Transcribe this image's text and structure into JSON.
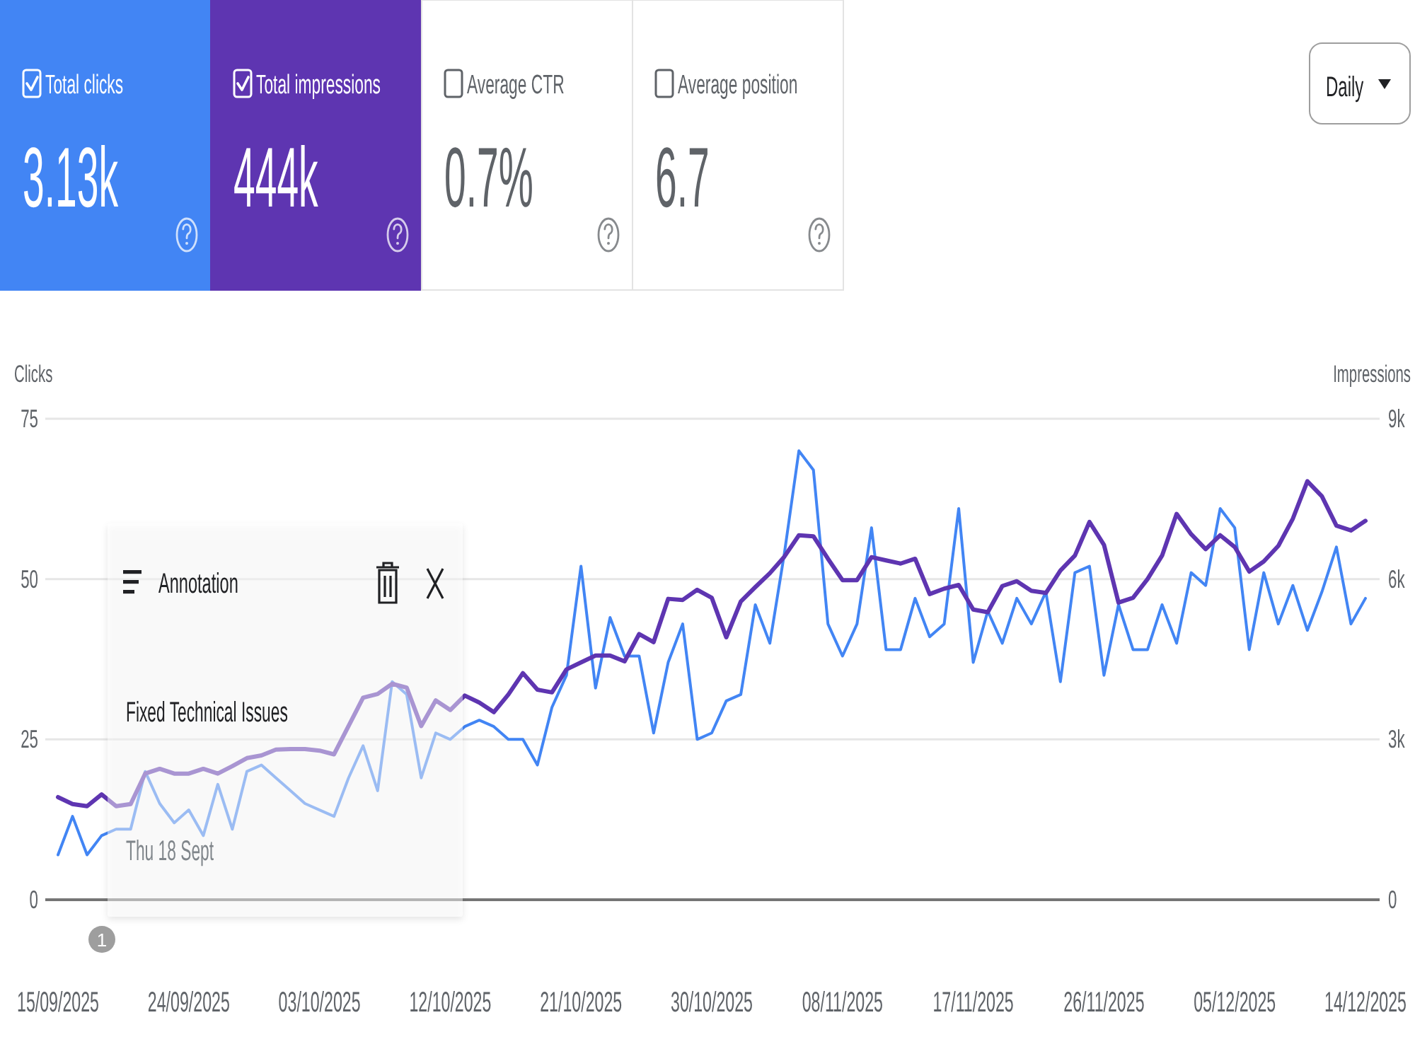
{
  "chart_data": [
    {
      "type": "other",
      "annotations": [
        "Total clicks",
        "3.13k",
        "Total impressions",
        "444k",
        "Average CTR",
        "0.7%",
        "Average position",
        "6.7",
        "Daily"
      ]
    },
    {
      "type": "line",
      "ylabel": "Clicks",
      "y2label": "Impressions",
      "x": [
        "2025-09-15",
        "2025-09-16",
        "2025-09-17",
        "2025-09-18",
        "2025-09-19",
        "2025-09-20",
        "2025-09-21",
        "2025-09-22",
        "2025-09-23",
        "2025-09-24",
        "2025-09-25",
        "2025-09-26",
        "2025-09-27",
        "2025-09-28",
        "2025-09-29",
        "2025-09-30",
        "2025-10-01",
        "2025-10-02",
        "2025-10-03",
        "2025-10-04",
        "2025-10-05",
        "2025-10-06",
        "2025-10-07",
        "2025-10-08",
        "2025-10-09",
        "2025-10-10",
        "2025-10-11",
        "2025-10-12",
        "2025-10-13",
        "2025-10-14",
        "2025-10-15",
        "2025-10-16",
        "2025-10-17",
        "2025-10-18",
        "2025-10-19",
        "2025-10-20",
        "2025-10-21",
        "2025-10-22",
        "2025-10-23",
        "2025-10-24",
        "2025-10-25",
        "2025-10-26",
        "2025-10-27",
        "2025-10-28",
        "2025-10-29",
        "2025-10-30",
        "2025-10-31",
        "2025-11-01",
        "2025-11-02",
        "2025-11-03",
        "2025-11-04",
        "2025-11-05",
        "2025-11-06",
        "2025-11-07",
        "2025-11-08",
        "2025-11-09",
        "2025-11-10",
        "2025-11-11",
        "2025-11-12",
        "2025-11-13",
        "2025-11-14",
        "2025-11-15",
        "2025-11-16",
        "2025-11-17",
        "2025-11-18",
        "2025-11-19",
        "2025-11-20",
        "2025-11-21",
        "2025-11-22",
        "2025-11-23",
        "2025-11-24",
        "2025-11-25",
        "2025-11-26",
        "2025-11-27",
        "2025-11-28",
        "2025-11-29",
        "2025-11-30",
        "2025-12-01",
        "2025-12-02",
        "2025-12-03",
        "2025-12-04",
        "2025-12-05",
        "2025-12-06",
        "2025-12-07",
        "2025-12-08",
        "2025-12-09",
        "2025-12-10",
        "2025-12-11",
        "2025-12-12",
        "2025-12-13",
        "2025-12-14"
      ],
      "xlim": [
        "2025-09-15",
        "2025-12-14"
      ],
      "xticks": [
        {
          "value": "2025-09-15",
          "label": "15/09/2025"
        },
        {
          "value": "2025-09-24",
          "label": "24/09/2025"
        },
        {
          "value": "2025-10-03",
          "label": "03/10/2025"
        },
        {
          "value": "2025-10-12",
          "label": "12/10/2025"
        },
        {
          "value": "2025-10-21",
          "label": "21/10/2025"
        },
        {
          "value": "2025-10-30",
          "label": "30/10/2025"
        },
        {
          "value": "2025-11-08",
          "label": "08/11/2025"
        },
        {
          "value": "2025-11-17",
          "label": "17/11/2025"
        },
        {
          "value": "2025-11-26",
          "label": "26/11/2025"
        },
        {
          "value": "2025-12-05",
          "label": "05/12/2025"
        },
        {
          "value": "2025-12-14",
          "label": "14/12/2025"
        }
      ],
      "ylim": [
        0,
        75
      ],
      "yticks": [
        0,
        25,
        50,
        75
      ],
      "y2lim": [
        0,
        9000
      ],
      "y2ticks": [
        0,
        {
          "value": 3000,
          "label": "3k"
        },
        {
          "value": 6000,
          "label": "6k"
        },
        {
          "value": 9000,
          "label": "9k"
        }
      ],
      "grid": "y",
      "series": [
        {
          "color": "#4285f4",
          "values": [
            7,
            13,
            7,
            10,
            11,
            11,
            20,
            15,
            12,
            14,
            10,
            18,
            11,
            20,
            21,
            19,
            17,
            15,
            14,
            13,
            19,
            24,
            17,
            34,
            32,
            19,
            26,
            25,
            27,
            28,
            27,
            25,
            25,
            21,
            30,
            35,
            52,
            33,
            44,
            38,
            38,
            26,
            37,
            43,
            25,
            26,
            31,
            32,
            46,
            40,
            54,
            70,
            67,
            43,
            38,
            43,
            58,
            39,
            39,
            47,
            41,
            43,
            61,
            37,
            45,
            40,
            47,
            43,
            48,
            34,
            51,
            52,
            35,
            46,
            39,
            39,
            46,
            40,
            51,
            49,
            61,
            58,
            39,
            51,
            43,
            49,
            42,
            48,
            55,
            43,
            47
          ]
        },
        {
          "color": "#5e35b1",
          "axis": "y2",
          "values": [
            1920,
            1790,
            1750,
            1970,
            1750,
            1790,
            2360,
            2450,
            2360,
            2360,
            2450,
            2360,
            2500,
            2650,
            2700,
            2810,
            2820,
            2820,
            2790,
            2720,
            3250,
            3780,
            3850,
            4040,
            3970,
            3250,
            3730,
            3550,
            3820,
            3690,
            3510,
            3840,
            4240,
            3930,
            3880,
            4310,
            4440,
            4570,
            4570,
            4460,
            4970,
            4820,
            5630,
            5610,
            5800,
            5650,
            4910,
            5580,
            5850,
            6110,
            6420,
            6820,
            6800,
            6380,
            5980,
            5980,
            6410,
            6350,
            6290,
            6380,
            5720,
            5820,
            5890,
            5430,
            5380,
            5870,
            5960,
            5780,
            5740,
            6160,
            6440,
            7070,
            6640,
            5560,
            5650,
            6000,
            6440,
            7220,
            6840,
            6560,
            6820,
            6600,
            6140,
            6330,
            6620,
            7130,
            7830,
            7550,
            7000,
            6910,
            7090
          ]
        }
      ],
      "annotations": [
        "1",
        "Annotation",
        "Fixed Technical Issues",
        "Thu 18 Sept"
      ]
    }
  ]
}
